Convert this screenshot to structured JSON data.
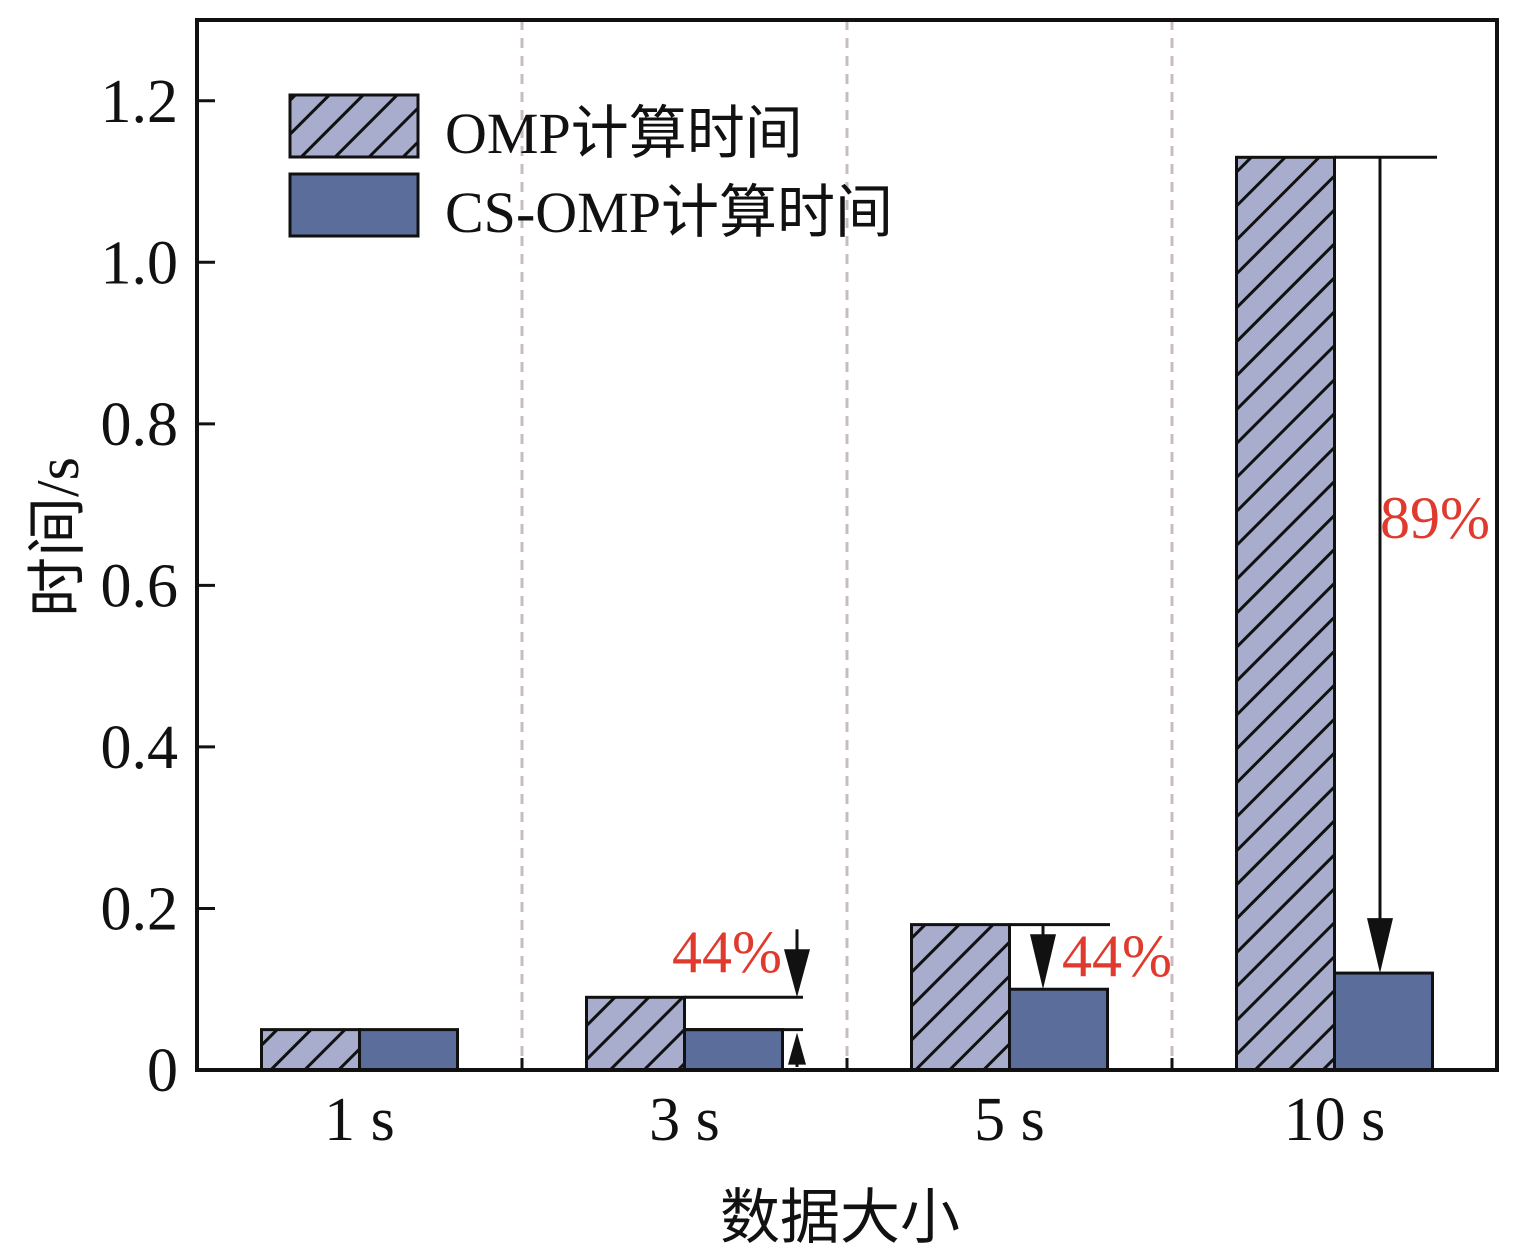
{
  "chart_data": {
    "type": "bar",
    "categories": [
      "1 s",
      "3 s",
      "5 s",
      "10 s"
    ],
    "series": [
      {
        "name": "OMP计算时间",
        "values": [
          0.05,
          0.09,
          0.18,
          1.13
        ],
        "color": "#a8adcd",
        "hatched": true
      },
      {
        "name": "CS-OMP计算时间",
        "values": [
          0.05,
          0.05,
          0.1,
          0.12
        ],
        "color": "#5b6d9a",
        "hatched": false
      }
    ],
    "xlabel": "数据大小",
    "ylabel": "时间/s",
    "ylim": [
      0,
      1.3
    ],
    "yticks": [
      0,
      0.2,
      0.4,
      0.6,
      0.8,
      1.0,
      1.2
    ],
    "ytick_labels": [
      "0",
      "0.2",
      "0.4",
      "0.6",
      "0.8",
      "1.0",
      "1.2"
    ],
    "grid": false,
    "category_separators": true,
    "legend": "top-left",
    "annotations": [
      {
        "category": "3 s",
        "text": "44%"
      },
      {
        "category": "5 s",
        "text": "44%"
      },
      {
        "category": "10 s",
        "text": "89%"
      }
    ],
    "annotation_color": "#e03a2e"
  }
}
